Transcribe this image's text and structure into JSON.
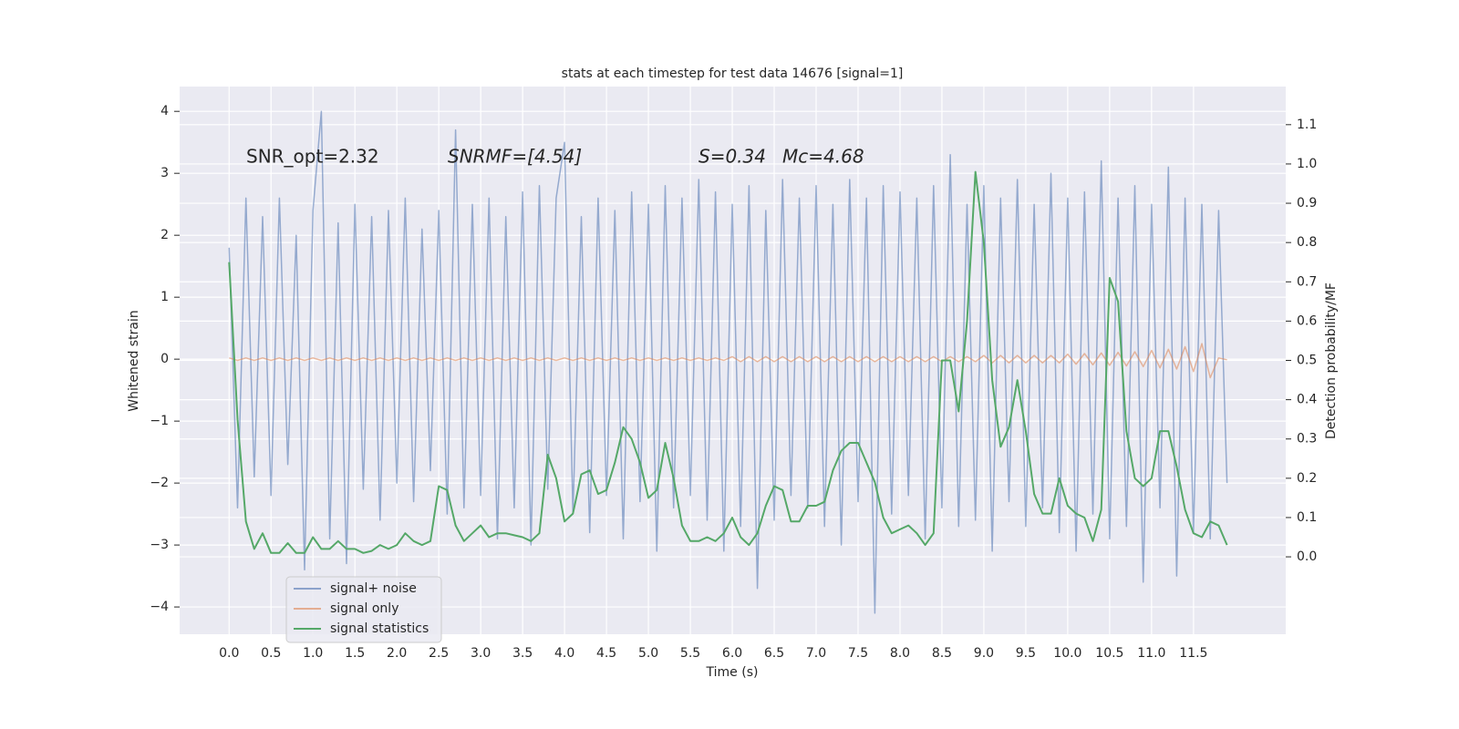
{
  "chart_data": {
    "type": "line",
    "title": "stats at each timestep for test data 14676 [signal=1]",
    "xlabel": "Time (s)",
    "ylabel": "Whitened strain",
    "y2label": "Detection probability/MF",
    "annotations": [
      "SNR_opt=2.32",
      "SNRMF=[4.54]",
      "S=0.34",
      "Mc=4.68"
    ],
    "grid": true,
    "legend": "lower left",
    "xlim": [
      -0.59,
      12.6
    ],
    "ylim": [
      -4.44,
      4.4
    ],
    "y2lim": [
      -0.197,
      1.197
    ],
    "xticks": [
      {
        "value": 0,
        "label": "0.0"
      },
      0.5,
      {
        "value": 1,
        "label": "1.0"
      },
      1.5,
      {
        "value": 2,
        "label": "2.0"
      },
      2.5,
      {
        "value": 3,
        "label": "3.0"
      },
      3.5,
      {
        "value": 4,
        "label": "4.0"
      },
      4.5,
      {
        "value": 5,
        "label": "5.0"
      },
      5.5,
      {
        "value": 6,
        "label": "6.0"
      },
      6.5,
      {
        "value": 7,
        "label": "7.0"
      },
      7.5,
      {
        "value": 8,
        "label": "8.0"
      },
      8.5,
      {
        "value": 9,
        "label": "9.0"
      },
      9.5,
      {
        "value": 10,
        "label": "10.0"
      },
      10.5,
      {
        "value": 11,
        "label": "11.0"
      },
      11.5
    ],
    "yticks": [
      {
        "value": -4,
        "label": "−4"
      },
      {
        "value": -3,
        "label": "−3"
      },
      {
        "value": -2,
        "label": "−2"
      },
      {
        "value": -1,
        "label": "−1"
      },
      0,
      1,
      2,
      3,
      4
    ],
    "y2ticks": [
      {
        "value": 0,
        "label": "0.0"
      },
      0.1,
      0.2,
      0.3,
      0.4,
      0.5,
      0.6,
      0.7,
      0.8,
      0.9,
      {
        "value": 1,
        "label": "1.0"
      },
      1.1
    ],
    "x": [
      0.0,
      0.1,
      0.2,
      0.3,
      0.4,
      0.5,
      0.6,
      0.7,
      0.8,
      0.9,
      1.0,
      1.1,
      1.2,
      1.3,
      1.4,
      1.5,
      1.6,
      1.7,
      1.8,
      1.9,
      2.0,
      2.1,
      2.2,
      2.3,
      2.4,
      2.5,
      2.6,
      2.7,
      2.8,
      2.9,
      3.0,
      3.1,
      3.2,
      3.3,
      3.4,
      3.5,
      3.6,
      3.7,
      3.8,
      3.9,
      4.0,
      4.1,
      4.2,
      4.3,
      4.4,
      4.5,
      4.6,
      4.7,
      4.8,
      4.9,
      5.0,
      5.1,
      5.2,
      5.3,
      5.4,
      5.5,
      5.6,
      5.7,
      5.8,
      5.9,
      6.0,
      6.1,
      6.2,
      6.3,
      6.4,
      6.5,
      6.6,
      6.7,
      6.8,
      6.9,
      7.0,
      7.1,
      7.2,
      7.3,
      7.4,
      7.5,
      7.6,
      7.7,
      7.8,
      7.9,
      8.0,
      8.1,
      8.2,
      8.3,
      8.4,
      8.5,
      8.6,
      8.7,
      8.8,
      8.9,
      9.0,
      9.1,
      9.2,
      9.3,
      9.4,
      9.5,
      9.6,
      9.7,
      9.8,
      9.9,
      10.0,
      10.1,
      10.2,
      10.3,
      10.4,
      10.5,
      10.6,
      10.7,
      10.8,
      10.9,
      11.0,
      11.1,
      11.2,
      11.3,
      11.4,
      11.5,
      11.6,
      11.7,
      11.8,
      11.9
    ],
    "series": [
      {
        "name": "signal+ noise",
        "color": "#4c72b0",
        "values": [
          1.8,
          -2.4,
          2.6,
          -1.9,
          2.3,
          -2.2,
          2.6,
          -1.7,
          2.0,
          -3.4,
          2.4,
          4.0,
          -2.9,
          2.2,
          -3.3,
          2.5,
          -2.1,
          2.3,
          -2.6,
          2.4,
          -2.0,
          2.6,
          -2.3,
          2.1,
          -1.8,
          2.4,
          -2.5,
          3.7,
          -2.4,
          2.5,
          -2.2,
          2.6,
          -2.9,
          2.3,
          -2.4,
          2.7,
          -3.0,
          2.8,
          -2.1,
          2.6,
          3.5,
          -2.5,
          2.3,
          -2.8,
          2.6,
          -2.2,
          2.4,
          -2.9,
          2.7,
          -2.3,
          2.5,
          -3.1,
          2.8,
          -2.4,
          2.6,
          -2.2,
          2.9,
          -2.6,
          2.7,
          -3.1,
          2.5,
          -2.7,
          2.8,
          -3.7,
          2.4,
          -2.6,
          2.9,
          -2.2,
          2.6,
          -2.4,
          2.8,
          -2.7,
          2.5,
          -3.0,
          2.9,
          -2.3,
          2.6,
          -4.1,
          2.8,
          -2.5,
          2.7,
          -2.2,
          2.6,
          -2.9,
          2.8,
          -2.4,
          3.3,
          -2.7,
          2.5,
          -2.6,
          2.8,
          -3.1,
          2.6,
          -2.3,
          2.9,
          -2.7,
          2.5,
          -2.4,
          3.0,
          -2.8,
          2.6,
          -3.1,
          2.7,
          -2.5,
          3.2,
          -2.9,
          2.6,
          -2.7,
          2.8,
          -3.6,
          2.5,
          -2.4,
          3.1,
          -3.5,
          2.6,
          -2.8,
          2.5,
          -2.9,
          2.4,
          -2.0
        ]
      },
      {
        "name": "signal only",
        "color": "#dd8452",
        "values": [
          0.02,
          -0.02,
          0.02,
          -0.02,
          0.02,
          -0.02,
          0.02,
          -0.02,
          0.02,
          -0.02,
          0.02,
          -0.02,
          0.02,
          -0.02,
          0.02,
          -0.02,
          0.02,
          -0.02,
          0.02,
          -0.02,
          0.02,
          -0.02,
          0.02,
          -0.02,
          0.02,
          -0.02,
          0.02,
          -0.02,
          0.02,
          -0.02,
          0.02,
          -0.02,
          0.02,
          -0.02,
          0.02,
          -0.02,
          0.02,
          -0.02,
          0.02,
          -0.02,
          0.02,
          -0.02,
          0.02,
          -0.02,
          0.02,
          -0.02,
          0.02,
          -0.02,
          0.02,
          -0.02,
          0.02,
          -0.02,
          0.02,
          -0.02,
          0.02,
          -0.02,
          0.02,
          -0.02,
          0.02,
          -0.02,
          0.04,
          -0.04,
          0.04,
          -0.04,
          0.04,
          -0.04,
          0.04,
          -0.04,
          0.04,
          -0.04,
          0.04,
          -0.04,
          0.04,
          -0.04,
          0.04,
          -0.04,
          0.04,
          -0.04,
          0.04,
          -0.04,
          0.04,
          -0.04,
          0.04,
          -0.04,
          0.04,
          -0.04,
          0.04,
          -0.04,
          0.04,
          -0.04,
          0.06,
          -0.06,
          0.06,
          -0.06,
          0.06,
          -0.06,
          0.06,
          -0.06,
          0.06,
          -0.06,
          0.08,
          -0.08,
          0.09,
          -0.09,
          0.1,
          -0.1,
          0.11,
          -0.11,
          0.12,
          -0.12,
          0.14,
          -0.14,
          0.16,
          -0.16,
          0.2,
          -0.2,
          0.25,
          -0.3,
          0.02,
          -0.01
        ]
      },
      {
        "name": "signal statistics",
        "color": "#55a868",
        "axis": "y2",
        "values": [
          0.75,
          0.35,
          0.09,
          0.02,
          0.06,
          0.01,
          0.01,
          0.035,
          0.01,
          0.01,
          0.05,
          0.02,
          0.02,
          0.04,
          0.02,
          0.02,
          0.01,
          0.015,
          0.03,
          0.02,
          0.03,
          0.06,
          0.04,
          0.03,
          0.04,
          0.18,
          0.17,
          0.08,
          0.04,
          0.06,
          0.08,
          0.05,
          0.06,
          0.06,
          0.055,
          0.05,
          0.04,
          0.06,
          0.26,
          0.2,
          0.09,
          0.11,
          0.21,
          0.22,
          0.16,
          0.17,
          0.24,
          0.33,
          0.3,
          0.24,
          0.15,
          0.17,
          0.29,
          0.2,
          0.08,
          0.04,
          0.04,
          0.05,
          0.04,
          0.06,
          0.1,
          0.05,
          0.03,
          0.06,
          0.13,
          0.18,
          0.17,
          0.09,
          0.09,
          0.13,
          0.13,
          0.14,
          0.22,
          0.27,
          0.29,
          0.29,
          0.24,
          0.19,
          0.1,
          0.06,
          0.07,
          0.08,
          0.06,
          0.03,
          0.06,
          0.5,
          0.5,
          0.37,
          0.6,
          0.98,
          0.8,
          0.45,
          0.28,
          0.33,
          0.45,
          0.32,
          0.16,
          0.11,
          0.11,
          0.2,
          0.13,
          0.11,
          0.1,
          0.04,
          0.12,
          0.71,
          0.65,
          0.32,
          0.2,
          0.18,
          0.2,
          0.32,
          0.32,
          0.23,
          0.12,
          0.06,
          0.05,
          0.09,
          0.08,
          0.03
        ]
      }
    ]
  }
}
